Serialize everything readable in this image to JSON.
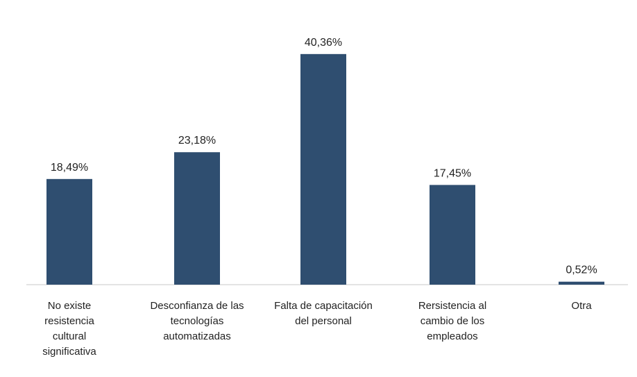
{
  "chart_data": {
    "type": "bar",
    "categories": [
      "No existe resistencia cultural significativa",
      "Desconfianza de las tecnologías automatizadas",
      "Falta de capacitación del personal",
      "Rersistencia al cambio de los empleados",
      "Otra"
    ],
    "values": [
      18.49,
      23.18,
      40.36,
      17.45,
      0.52
    ],
    "value_labels": [
      "18,49%",
      "23,18%",
      "40,36%",
      "17,45%",
      "0,52%"
    ],
    "color": "#2f4e70"
  }
}
